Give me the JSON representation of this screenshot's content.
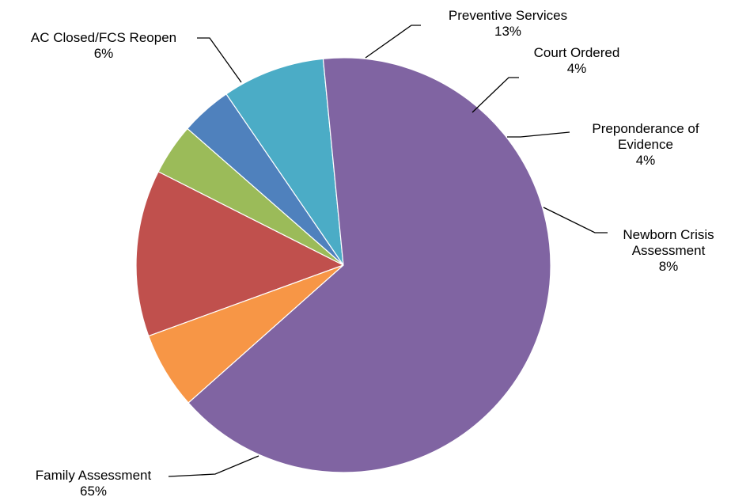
{
  "chart_data": {
    "type": "pie",
    "start_angle_deg": 250,
    "direction": "clockwise",
    "slices": [
      {
        "name": "Preventive Services",
        "label_lines": [
          "Preventive Services"
        ],
        "pct_label": "13%",
        "value": 13,
        "color": "#C0504D"
      },
      {
        "name": "Court Ordered",
        "label_lines": [
          "Court Ordered"
        ],
        "pct_label": "4%",
        "value": 4,
        "color": "#9BBB59"
      },
      {
        "name": "Preponderance of Evidence",
        "label_lines": [
          "Preponderance of",
          "Evidence"
        ],
        "pct_label": "4%",
        "value": 4,
        "color": "#4F81BD"
      },
      {
        "name": "Newborn Crisis Assessment",
        "label_lines": [
          "Newborn Crisis",
          "Assessment"
        ],
        "pct_label": "8%",
        "value": 8,
        "color": "#4BACC6"
      },
      {
        "name": "Family Assessment",
        "label_lines": [
          "Family Assessment"
        ],
        "pct_label": "65%",
        "value": 65,
        "color": "#8064A2"
      },
      {
        "name": "AC Closed/FCS Reopen",
        "label_lines": [
          "AC Closed/FCS Reopen"
        ],
        "pct_label": "6%",
        "value": 6,
        "color": "#F79646"
      }
    ]
  }
}
